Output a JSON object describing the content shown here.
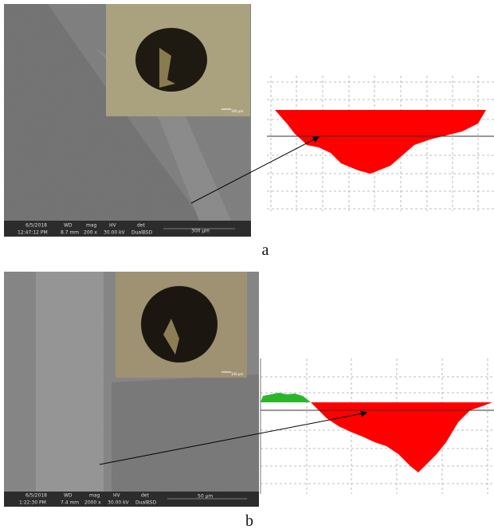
{
  "panels": [
    {
      "label": "a",
      "info_bar": {
        "date": "6/5/2018",
        "time": "12:47:12 PM",
        "wd_label": "WD",
        "wd": "8.7 mm",
        "mag_label": "mag",
        "mag": "200 x",
        "hv_label": "HV",
        "hv": "30.00 kV",
        "det_label": "det",
        "det": "DualBSD",
        "scale": "300 μm"
      },
      "inset_scale": "100 μm"
    },
    {
      "label": "b",
      "info_bar": {
        "date": "6/5/2018",
        "time": "1:22:30 PM",
        "wd_label": "WD",
        "wd": "7.4 mm",
        "mag_label": "mag",
        "mag": "2000 x",
        "hv_label": "HV",
        "hv": "30.00 kV",
        "det_label": "det",
        "det": "DualBSD",
        "scale": "50 μm"
      },
      "inset_scale": "100 μm"
    }
  ]
}
